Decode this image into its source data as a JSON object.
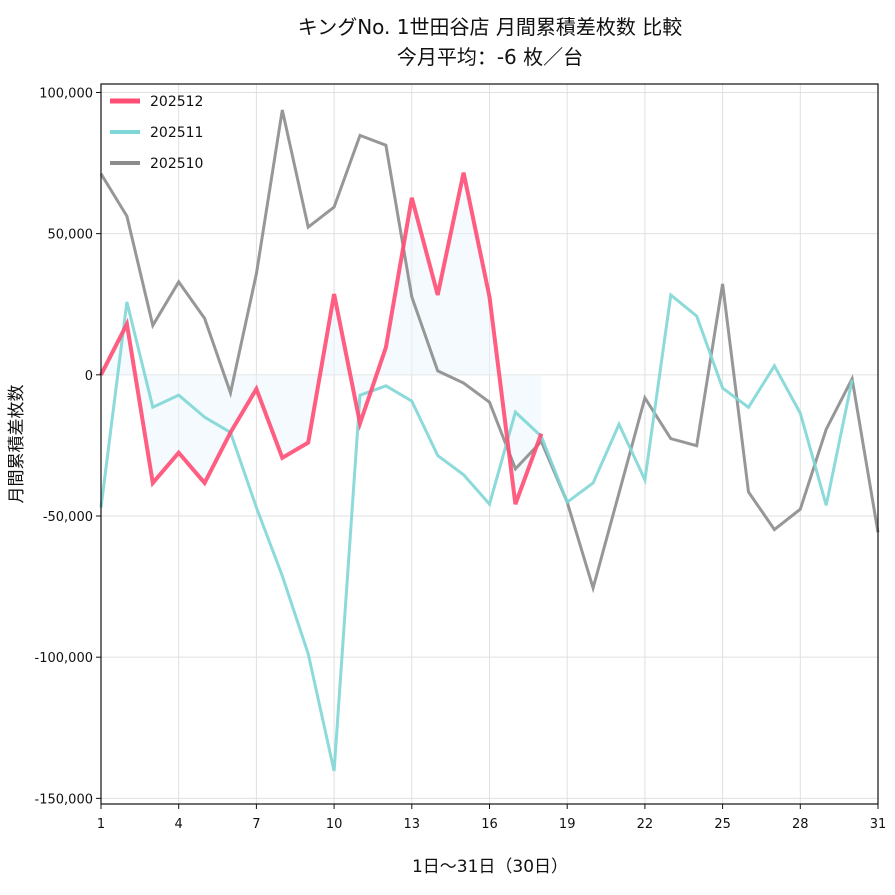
{
  "chart_data": {
    "type": "line",
    "title": "キングNo. 1世田谷店 月間累積差枚数 比較",
    "subtitle": "今月平均：-6 枚／台",
    "xlabel": "1日〜31日（30日）",
    "ylabel": "月間累積差枚数",
    "xlim": [
      1,
      31
    ],
    "ylim": [
      -152000,
      103000
    ],
    "xticks": [
      1,
      4,
      7,
      10,
      13,
      16,
      19,
      22,
      25,
      28,
      31
    ],
    "yticks": [
      100000,
      50000,
      0,
      -50000,
      -100000,
      -150000
    ],
    "ytick_labels": [
      "100,000",
      "50,000",
      "0",
      "-50,000",
      "-100,000",
      "-150,000"
    ],
    "grid": true,
    "legend_position": "top-left",
    "series": [
      {
        "name": "202512",
        "color": "#ff4d73",
        "width": 4,
        "values": [
          0,
          18000,
          -38300,
          -27600,
          -38300,
          -20400,
          -5000,
          -29400,
          -24000,
          28600,
          -17200,
          9700,
          62700,
          28300,
          71600,
          27600,
          -45800,
          -20800
        ]
      },
      {
        "name": "202511",
        "color": "#7fd6d6",
        "width": 3,
        "values": [
          -47000,
          25800,
          -11500,
          -7200,
          -15000,
          -20400,
          -47000,
          -71200,
          -98800,
          -140300,
          -7200,
          -3900,
          -9300,
          -28600,
          -35400,
          -45800,
          -13200,
          -21800,
          -45100,
          -38300,
          -17500,
          -37200,
          28300,
          20800,
          -4700,
          -11500,
          3200,
          -13600,
          -46200,
          -1800
        ]
      },
      {
        "name": "202510",
        "color": "#8c8c8c",
        "width": 3,
        "values": [
          71200,
          56200,
          17500,
          32900,
          20000,
          -6400,
          35800,
          93800,
          52300,
          59400,
          84800,
          81300,
          27600,
          1400,
          -2900,
          -9700,
          -33300,
          -23600,
          -45100,
          -75500,
          -41900,
          -8200,
          -22600,
          -25100,
          32200,
          -41500,
          -54800,
          -47600,
          -19300,
          -1400,
          -55800
        ]
      }
    ]
  }
}
